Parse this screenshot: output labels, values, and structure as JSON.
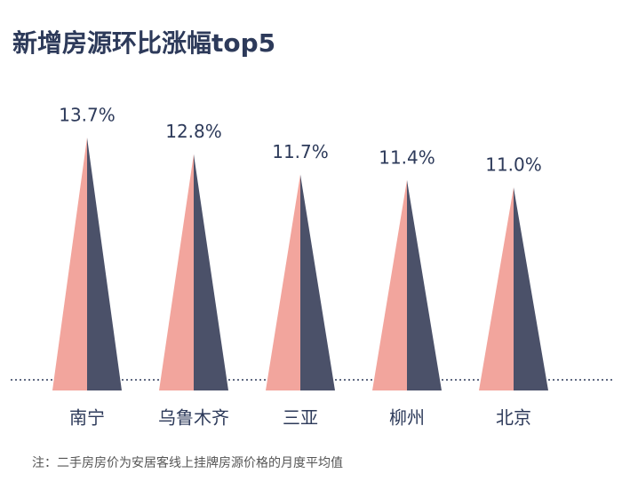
{
  "chart_data": {
    "type": "pyramid",
    "title": "新增房源环比涨幅top5",
    "categories": [
      "南宁",
      "乌鲁木齐",
      "三亚",
      "柳州",
      "北京"
    ],
    "values": [
      13.7,
      12.8,
      11.7,
      11.4,
      11.0
    ],
    "value_labels": [
      "13.7%",
      "12.8%",
      "11.7%",
      "11.4%",
      "11.0%"
    ],
    "colors": [
      "#f2a59d",
      "#4b5169"
    ],
    "note": "注：二手房房价为安居客线上挂牌房源价格的月度平均值"
  }
}
